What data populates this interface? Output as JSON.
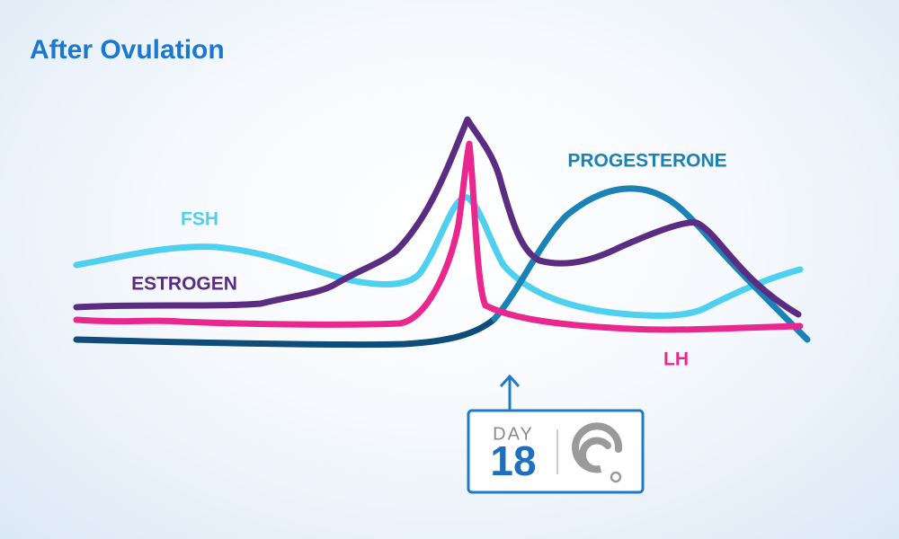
{
  "title": "After Ovulation",
  "curves": [
    {
      "label": "FSH"
    },
    {
      "label": "ESTROGEN"
    },
    {
      "label": "PROGESTERONE"
    },
    {
      "label": "LH"
    }
  ],
  "day_marker": {
    "label": "DAY",
    "day": 18
  }
}
